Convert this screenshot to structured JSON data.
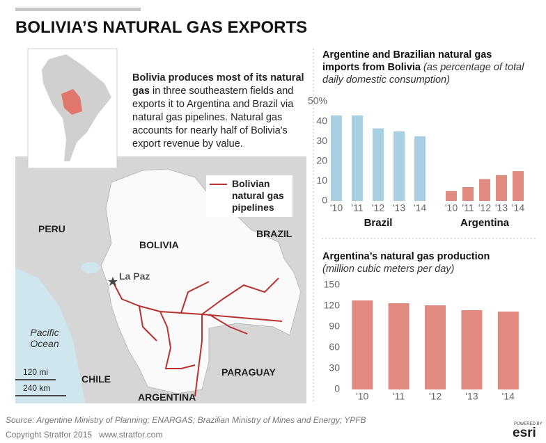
{
  "header": {
    "title": "BOLIVIA’S NATURAL GAS EXPORTS"
  },
  "intro": {
    "bold": "Bolivia produces most of its natural gas",
    "text": "in three southeastern fields and exports it to Argentina and Brazil via natural gas pipelines. Natural gas accounts for nearly half of Bolivia's export revenue by value."
  },
  "map": {
    "labels": {
      "peru": "PERU",
      "brazil": "BRAZIL",
      "bolivia": "BOLIVIA",
      "lapaz": "La Paz",
      "ocean": "Pacific Ocean",
      "chile": "CHILE",
      "paraguay": "PARAGUAY",
      "argentina": "ARGENTINA"
    },
    "legend": "Bolivian natural gas pipelines",
    "scale_mi": "120 mi",
    "scale_km": "240 km"
  },
  "chart_data": [
    {
      "type": "bar",
      "title": "Argentine and Brazilian natural gas imports from Bolivia",
      "subtitle": "(as percentage of total daily domestic consumption)",
      "categories": [
        "'10",
        "'11",
        "'12",
        "'13",
        "'14"
      ],
      "series": [
        {
          "name": "Brazil",
          "color": "#a9cfe2",
          "values": [
            43,
            43,
            36.5,
            35,
            32.5
          ]
        },
        {
          "name": "Argentina",
          "color": "#e08a80",
          "values": [
            5,
            7,
            11,
            13,
            15
          ]
        }
      ],
      "ylim": [
        0,
        50
      ],
      "yticks": [
        0,
        10,
        20,
        30,
        40,
        {
          "value": 50,
          "label": "50%"
        }
      ]
    },
    {
      "type": "bar",
      "title": "Argentina’s natural gas production",
      "subtitle": "(million cubic meters per day)",
      "categories": [
        "'10",
        "'11",
        "'12",
        "'13",
        "'14"
      ],
      "values": [
        128,
        124,
        121,
        114,
        112
      ],
      "color": "#e08a80",
      "ylim": [
        0,
        150
      ],
      "yticks": [
        0,
        30,
        60,
        90,
        120,
        150
      ]
    }
  ],
  "footer": {
    "source": "Source: Argentine Ministry of Planning; ENARGAS; Brazilian Ministry of Mines and Energy; YPFB",
    "copyright": "Copyright Stratfor 2015",
    "url": "www.stratfor.com"
  },
  "logo": {
    "powered": "POWERED BY",
    "brand": "esri"
  }
}
